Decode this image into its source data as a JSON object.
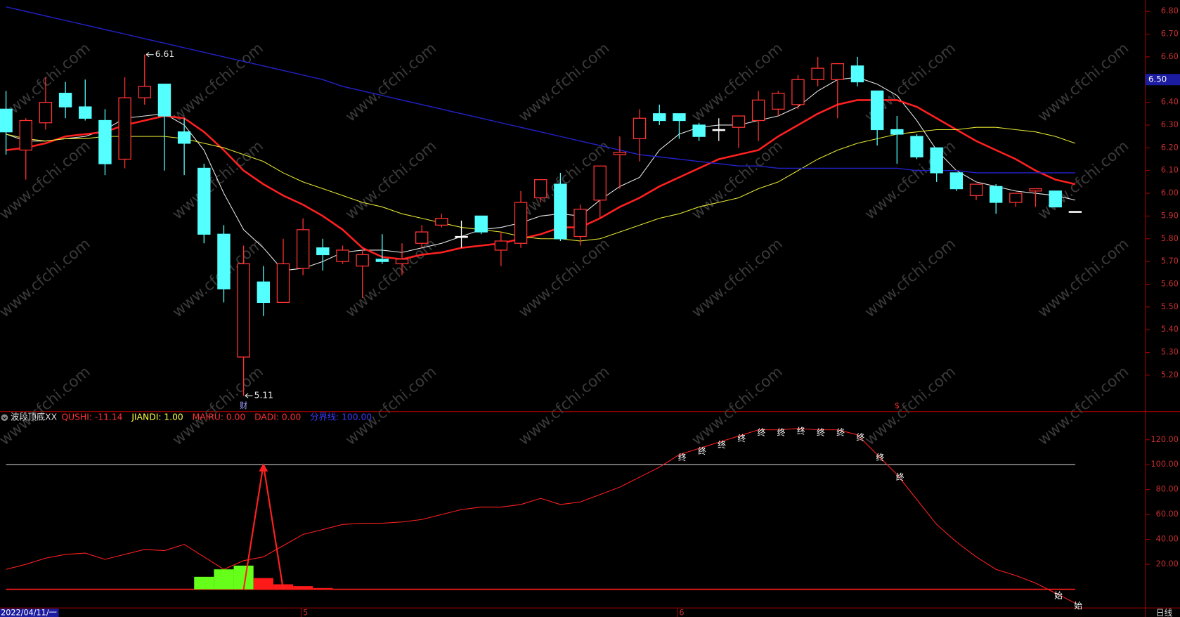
{
  "chart_data": [
    {
      "type": "candlestick",
      "up_color": "#ff3232",
      "down_color": "#54ffff",
      "flat_color": "#ffffff",
      "open": [
        6.37,
        6.19,
        6.31,
        6.44,
        6.38,
        6.32,
        6.15,
        6.42,
        6.48,
        6.27,
        6.11,
        5.82,
        5.28,
        5.61,
        5.52,
        5.67,
        5.76,
        5.7,
        5.68,
        5.71,
        5.69,
        5.78,
        5.86,
        5.81,
        5.9,
        5.75,
        5.78,
        5.98,
        6.04,
        5.81,
        5.97,
        6.17,
        6.24,
        6.35,
        6.35,
        6.3,
        6.28,
        6.29,
        6.32,
        6.37,
        6.39,
        6.5,
        6.5,
        6.56,
        6.45,
        6.28,
        6.25,
        6.2,
        6.09,
        5.99,
        6.03,
        5.96,
        6.01,
        6.01,
        5.92
      ],
      "high": [
        6.45,
        6.33,
        6.51,
        6.49,
        6.5,
        6.37,
        6.51,
        6.61,
        6.48,
        6.33,
        6.13,
        5.86,
        5.77,
        5.68,
        5.8,
        5.89,
        5.8,
        5.77,
        5.75,
        5.82,
        5.78,
        5.86,
        5.91,
        5.88,
        5.9,
        5.83,
        6.01,
        6.06,
        6.09,
        5.95,
        6.12,
        6.25,
        6.37,
        6.39,
        6.35,
        6.31,
        6.33,
        6.34,
        6.45,
        6.45,
        6.52,
        6.6,
        6.57,
        6.6,
        6.45,
        6.34,
        6.26,
        6.2,
        6.09,
        6.04,
        6.04,
        6.0,
        6.02,
        6.01,
        5.92
      ],
      "low": [
        6.17,
        6.06,
        6.28,
        6.33,
        6.32,
        6.08,
        6.11,
        6.39,
        6.1,
        6.08,
        5.78,
        5.52,
        5.11,
        5.46,
        5.52,
        5.64,
        5.66,
        5.69,
        5.54,
        5.69,
        5.64,
        5.76,
        5.85,
        5.76,
        5.82,
        5.68,
        5.76,
        5.96,
        5.79,
        5.77,
        5.89,
        6.02,
        6.14,
        6.3,
        6.24,
        6.23,
        6.23,
        6.2,
        6.23,
        6.34,
        6.37,
        6.47,
        6.33,
        6.47,
        6.21,
        6.13,
        6.15,
        6.05,
        6.01,
        5.97,
        5.91,
        5.94,
        5.94,
        5.94,
        5.92
      ],
      "close": [
        6.27,
        6.32,
        6.4,
        6.38,
        6.33,
        6.13,
        6.42,
        6.47,
        6.34,
        6.22,
        5.82,
        5.58,
        5.69,
        5.52,
        5.69,
        5.84,
        5.73,
        5.75,
        5.73,
        5.7,
        5.71,
        5.83,
        5.89,
        5.81,
        5.83,
        5.79,
        5.96,
        6.06,
        5.8,
        5.93,
        6.12,
        6.18,
        6.33,
        6.32,
        6.32,
        6.25,
        6.28,
        6.34,
        6.41,
        6.44,
        6.5,
        6.55,
        6.57,
        6.49,
        6.28,
        6.26,
        6.16,
        6.09,
        6.02,
        6.04,
        5.96,
        6.0,
        6.02,
        5.94,
        5.92
      ],
      "series": [
        {
          "color": "#e8e8e8",
          "width": 1,
          "values": [
            6.26,
            6.23,
            6.23,
            6.24,
            6.25,
            6.28,
            6.33,
            6.34,
            6.35,
            6.3,
            6.19,
            6.0,
            5.84,
            5.76,
            5.66,
            5.67,
            5.7,
            5.74,
            5.75,
            5.75,
            5.74,
            5.76,
            5.78,
            5.81,
            5.84,
            5.85,
            5.87,
            5.9,
            5.91,
            5.9,
            5.97,
            6.03,
            6.07,
            6.19,
            6.26,
            6.29,
            6.3,
            6.3,
            6.32,
            6.34,
            6.38,
            6.45,
            6.5,
            6.51,
            6.48,
            6.43,
            6.32,
            6.19,
            6.1,
            6.05,
            6.03,
            6.01,
            6.0,
            5.99,
            5.97
          ]
        },
        {
          "color": "#ff2020",
          "width": 2.4,
          "values": [
            6.19,
            6.2,
            6.22,
            6.25,
            6.26,
            6.27,
            6.3,
            6.32,
            6.34,
            6.33,
            6.27,
            6.19,
            6.1,
            6.04,
            5.99,
            5.95,
            5.9,
            5.84,
            5.76,
            5.72,
            5.71,
            5.73,
            5.74,
            5.76,
            5.77,
            5.78,
            5.8,
            5.82,
            5.85,
            5.85,
            5.89,
            5.94,
            5.98,
            6.03,
            6.07,
            6.11,
            6.15,
            6.17,
            6.19,
            6.25,
            6.3,
            6.35,
            6.39,
            6.41,
            6.41,
            6.41,
            6.38,
            6.33,
            6.28,
            6.23,
            6.19,
            6.15,
            6.1,
            6.06,
            6.04
          ]
        },
        {
          "color": "#e6e632",
          "width": 1,
          "values": [
            6.26,
            6.24,
            6.23,
            6.24,
            6.24,
            6.25,
            6.25,
            6.25,
            6.25,
            6.24,
            6.22,
            6.2,
            6.17,
            6.14,
            6.09,
            6.05,
            6.02,
            5.99,
            5.96,
            5.94,
            5.91,
            5.89,
            5.87,
            5.85,
            5.84,
            5.83,
            5.81,
            5.8,
            5.8,
            5.79,
            5.8,
            5.83,
            5.86,
            5.89,
            5.91,
            5.94,
            5.96,
            5.98,
            6.02,
            6.05,
            6.1,
            6.15,
            6.19,
            6.22,
            6.24,
            6.26,
            6.27,
            6.28,
            6.28,
            6.29,
            6.29,
            6.28,
            6.27,
            6.25,
            6.22
          ]
        },
        {
          "color": "#2222cc",
          "width": 1.3,
          "values": [
            6.82,
            6.8,
            6.78,
            6.76,
            6.74,
            6.72,
            6.7,
            6.68,
            6.66,
            6.64,
            6.62,
            6.6,
            6.58,
            6.56,
            6.54,
            6.52,
            6.5,
            6.47,
            6.45,
            6.43,
            6.41,
            6.39,
            6.37,
            6.35,
            6.33,
            6.31,
            6.29,
            6.27,
            6.25,
            6.23,
            6.21,
            6.19,
            6.17,
            6.16,
            6.15,
            6.14,
            6.13,
            6.12,
            6.12,
            6.11,
            6.11,
            6.11,
            6.11,
            6.11,
            6.11,
            6.11,
            6.1,
            6.1,
            6.1,
            6.09,
            6.09,
            6.09,
            6.09,
            6.09,
            6.09
          ]
        }
      ],
      "ylim": [
        5.04,
        6.85
      ],
      "yticks": [
        {
          "value": 5.2,
          "label": "5.20"
        },
        {
          "value": 5.3,
          "label": "5.30"
        },
        {
          "value": 5.4,
          "label": "5.40"
        },
        {
          "value": 5.5,
          "label": "5.50"
        },
        {
          "value": 5.6,
          "label": "5.60"
        },
        {
          "value": 5.7,
          "label": "5.70"
        },
        {
          "value": 5.8,
          "label": "5.80"
        },
        {
          "value": 5.9,
          "label": "5.90"
        },
        {
          "value": 6.0,
          "label": "6.00"
        },
        {
          "value": 6.1,
          "label": "6.10"
        },
        {
          "value": 6.2,
          "label": "6.20"
        },
        {
          "value": 6.3,
          "label": "6.30"
        },
        {
          "value": 6.4,
          "label": "6.40"
        },
        {
          "value": 6.5,
          "label": "6.50"
        },
        {
          "value": 6.6,
          "label": "6.60"
        },
        {
          "value": 6.7,
          "label": "6.70"
        },
        {
          "value": 6.8,
          "label": "6.80"
        }
      ],
      "annotations": [
        {
          "label": "6.61",
          "value": 6.61,
          "at": 7
        },
        {
          "label": "5.11",
          "value": 5.11,
          "at": 12
        }
      ],
      "markers": [
        {
          "text": "财",
          "at": 12,
          "color": "#a0a0ff"
        },
        {
          "text": "$",
          "at": 45,
          "color": "#ff3030"
        }
      ],
      "cursor_label": {
        "value": 6.5,
        "label": "6.50"
      },
      "watermark": "www.cfchi.com"
    },
    {
      "type": "line",
      "title": "波段顶底XX",
      "header_items": [
        {
          "text": "QUSHI: -11.14",
          "color": "#ff3030"
        },
        {
          "text": "JIANDI: 1.00",
          "color": "#ffff40"
        },
        {
          "text": "MAIRU: 0.00",
          "color": "#ff3030"
        },
        {
          "text": "DADI: 0.00",
          "color": "#ff3030"
        },
        {
          "text": "分界线: 100.00",
          "color": "#3a3aff"
        }
      ],
      "categories": [
        "2022/04/11/一",
        null,
        null,
        null,
        null,
        null,
        null,
        null,
        null,
        null,
        null,
        null,
        null,
        null,
        null,
        "5",
        null,
        null,
        null,
        null,
        null,
        null,
        null,
        null,
        null,
        null,
        null,
        null,
        null,
        null,
        null,
        null,
        null,
        null,
        "6",
        null,
        null,
        null,
        null,
        null,
        null,
        null,
        null,
        null,
        null,
        null,
        null,
        null,
        null,
        null,
        null,
        null,
        null,
        null,
        null
      ],
      "series": [
        {
          "type": "line",
          "color": "#ff2020",
          "values": [
            16,
            20,
            25,
            28,
            29,
            24,
            28,
            32,
            31,
            36,
            26,
            16,
            23,
            26,
            35,
            44,
            48,
            52,
            53,
            53,
            54,
            56,
            60,
            64,
            66,
            66,
            68,
            73,
            68,
            70,
            76,
            82,
            90,
            98,
            108,
            113,
            118,
            123,
            128,
            128,
            129,
            128,
            128,
            124,
            108,
            92,
            72,
            52,
            38,
            26,
            16,
            11,
            5,
            -3,
            -11.14
          ]
        },
        {
          "type": "bar",
          "color": "#66ff1a",
          "values": [
            null,
            null,
            null,
            null,
            null,
            null,
            null,
            null,
            null,
            null,
            10,
            16,
            19,
            null,
            null,
            null,
            null,
            null,
            null,
            null,
            null,
            null,
            null,
            null,
            null,
            null,
            null,
            null,
            null,
            null,
            null,
            null,
            null,
            null,
            null,
            null,
            null,
            null,
            null,
            null,
            null,
            null,
            null,
            null,
            null,
            null,
            null,
            null,
            null,
            null,
            null,
            null,
            null,
            null,
            null
          ]
        },
        {
          "type": "bar",
          "color": "#ff1a1a",
          "values": [
            null,
            null,
            null,
            null,
            null,
            null,
            null,
            null,
            null,
            null,
            null,
            null,
            null,
            9,
            4,
            2.5,
            1,
            null,
            null,
            null,
            null,
            null,
            null,
            null,
            null,
            null,
            null,
            null,
            null,
            null,
            null,
            null,
            null,
            null,
            null,
            null,
            null,
            null,
            null,
            null,
            null,
            null,
            null,
            null,
            null,
            null,
            null,
            null,
            null,
            null,
            null,
            null,
            null,
            null,
            null
          ]
        },
        {
          "type": "arrow",
          "color": "#ff2020",
          "values": [
            null,
            null,
            null,
            null,
            null,
            null,
            null,
            null,
            null,
            null,
            null,
            null,
            0,
            100,
            0,
            null,
            null,
            null,
            null,
            null,
            null,
            null,
            null,
            null,
            null,
            null,
            null,
            null,
            null,
            null,
            null,
            null,
            null,
            null,
            null,
            null,
            null,
            null,
            null,
            null,
            null,
            null,
            null,
            null,
            null,
            null,
            null,
            null,
            null,
            null,
            null,
            null,
            null,
            null,
            null
          ]
        }
      ],
      "hlines": [
        {
          "value": 100,
          "color": "#e0e0e0"
        },
        {
          "value": 0,
          "color": "#ff1a1a"
        }
      ],
      "ylim": [
        -15,
        142
      ],
      "yticks": [
        {
          "value": 20,
          "label": "20.00"
        },
        {
          "value": 40,
          "label": "40.00"
        },
        {
          "value": 60,
          "label": "60.00"
        },
        {
          "value": 80,
          "label": "80.00"
        },
        {
          "value": 100,
          "label": "100.00"
        },
        {
          "value": 120,
          "label": "120.00"
        }
      ],
      "annotations": [
        {
          "text": "终",
          "at": 34
        },
        {
          "text": "终",
          "at": 35
        },
        {
          "text": "终",
          "at": 36
        },
        {
          "text": "终",
          "at": 37
        },
        {
          "text": "终",
          "at": 38
        },
        {
          "text": "终",
          "at": 39
        },
        {
          "text": "终",
          "at": 40
        },
        {
          "text": "终",
          "at": 41
        },
        {
          "text": "终",
          "at": 42
        },
        {
          "text": "终",
          "at": 43
        },
        {
          "text": "终",
          "at": 44
        },
        {
          "text": "终",
          "at": 45
        },
        {
          "text": "始",
          "at": 53
        },
        {
          "text": "始",
          "at": 54
        }
      ],
      "period_label": "日线"
    }
  ]
}
